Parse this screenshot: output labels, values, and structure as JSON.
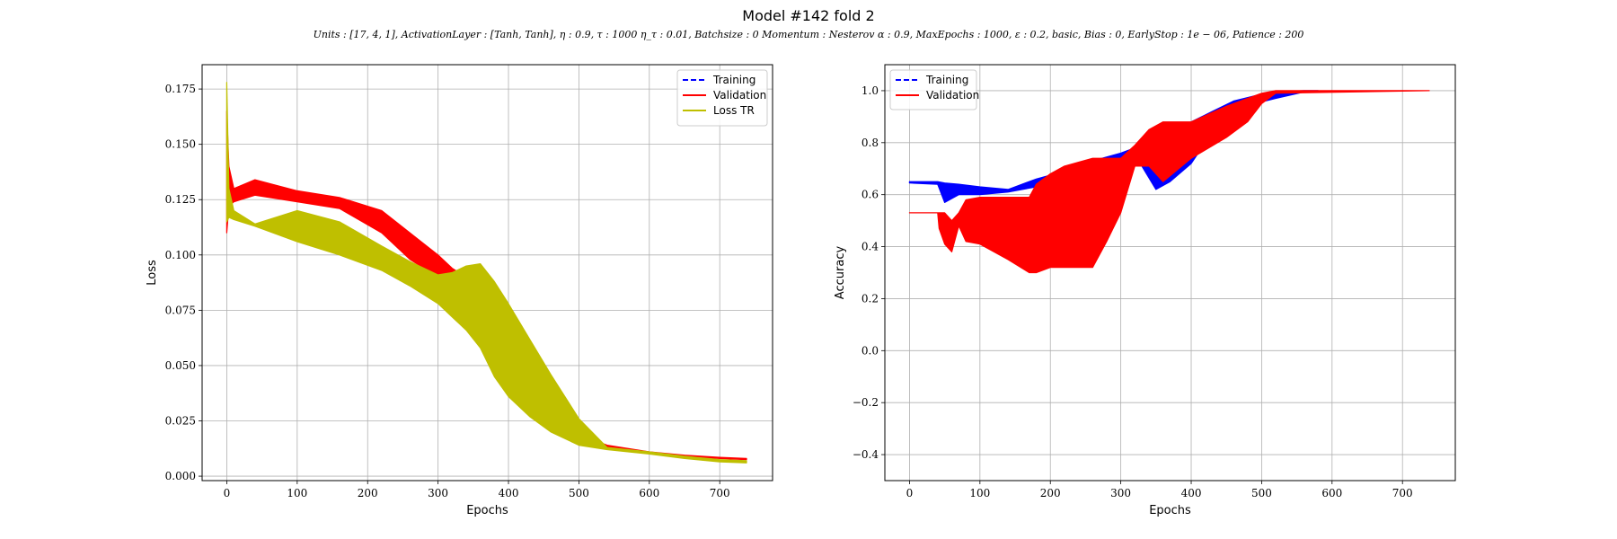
{
  "figure": {
    "title": "Model #142 fold 2",
    "subtitle": "Units : [17, 4, 1], ActivationLayer : [Tanh, Tanh], η : 0.9, τ : 1000 η_τ : 0.01, Batchsize : 0 Momentum : Nesterov α : 0.9, MaxEpochs : 1000, ε : 0.2, basic, Bias : 0, EarlyStop : 1e − 06, Patience : 200"
  },
  "chart_data": [
    {
      "type": "line",
      "name": "loss-plot",
      "title": "",
      "xlabel": "Epochs",
      "ylabel": "Loss",
      "xlim": [
        -35,
        775
      ],
      "ylim": [
        -0.002,
        0.186
      ],
      "xticks": [
        0,
        100,
        200,
        300,
        400,
        500,
        600,
        700
      ],
      "yticks": [
        0.0,
        0.025,
        0.05,
        0.075,
        0.1,
        0.125,
        0.15,
        0.175
      ],
      "ytick_labels": [
        "0.000",
        "0.025",
        "0.050",
        "0.075",
        "0.100",
        "0.125",
        "0.150",
        "0.175"
      ],
      "grid": true,
      "legend_position": "top-right",
      "legend": [
        {
          "label": "Training",
          "color": "#0000ff",
          "style": "dashed"
        },
        {
          "label": "Validation",
          "color": "#ff0000",
          "style": "solid"
        },
        {
          "label": "Loss TR",
          "color": "#bfbf00",
          "style": "solid"
        }
      ],
      "series": [
        {
          "name": "Validation",
          "color": "#ff0000",
          "band": true,
          "x": [
            0,
            3,
            10,
            40,
            100,
            160,
            220,
            260,
            300,
            320,
            340,
            360,
            380,
            400,
            430,
            460,
            500,
            540,
            600,
            650,
            700,
            738
          ],
          "y_low": [
            0.11,
            0.122,
            0.124,
            0.127,
            0.124,
            0.121,
            0.11,
            0.098,
            0.09,
            0.086,
            0.083,
            0.078,
            0.06,
            0.045,
            0.032,
            0.024,
            0.016,
            0.013,
            0.011,
            0.009,
            0.008,
            0.0075
          ],
          "y_high": [
            0.165,
            0.14,
            0.13,
            0.134,
            0.129,
            0.126,
            0.12,
            0.11,
            0.1,
            0.094,
            0.09,
            0.085,
            0.07,
            0.053,
            0.038,
            0.028,
            0.019,
            0.014,
            0.011,
            0.0095,
            0.0085,
            0.008
          ]
        },
        {
          "name": "Loss TR",
          "color": "#bfbf00",
          "band": true,
          "x": [
            0,
            3,
            10,
            40,
            100,
            160,
            220,
            260,
            300,
            320,
            340,
            360,
            380,
            400,
            430,
            460,
            500,
            540,
            600,
            650,
            700,
            738
          ],
          "y_low": [
            0.115,
            0.117,
            0.116,
            0.113,
            0.106,
            0.1,
            0.093,
            0.086,
            0.078,
            0.072,
            0.066,
            0.058,
            0.045,
            0.036,
            0.027,
            0.02,
            0.014,
            0.012,
            0.01,
            0.008,
            0.0065,
            0.006
          ],
          "y_high": [
            0.178,
            0.13,
            0.12,
            0.114,
            0.12,
            0.115,
            0.104,
            0.097,
            0.091,
            0.092,
            0.095,
            0.096,
            0.088,
            0.078,
            0.062,
            0.046,
            0.026,
            0.013,
            0.011,
            0.009,
            0.0075,
            0.007
          ]
        }
      ]
    },
    {
      "type": "line",
      "name": "accuracy-plot",
      "title": "",
      "xlabel": "Epochs",
      "ylabel": "Accuracy",
      "xlim": [
        -35,
        775
      ],
      "ylim": [
        -0.5,
        1.1
      ],
      "xticks": [
        0,
        100,
        200,
        300,
        400,
        500,
        600,
        700
      ],
      "yticks": [
        -0.4,
        -0.2,
        0.0,
        0.2,
        0.4,
        0.6,
        0.8,
        1.0
      ],
      "ytick_labels": [
        "−0.4",
        "−0.2",
        "0.0",
        "0.2",
        "0.4",
        "0.6",
        "0.8",
        "1.0"
      ],
      "grid": true,
      "legend_position": "top-left",
      "legend": [
        {
          "label": "Training",
          "color": "#0000ff",
          "style": "dashed"
        },
        {
          "label": "Validation",
          "color": "#ff0000",
          "style": "solid"
        }
      ],
      "series": [
        {
          "name": "Training",
          "color": "#0000ff",
          "band": true,
          "x": [
            0,
            40,
            50,
            70,
            100,
            140,
            180,
            220,
            260,
            300,
            330,
            350,
            370,
            400,
            430,
            460,
            490,
            520,
            560,
            580
          ],
          "y_low": [
            0.645,
            0.64,
            0.57,
            0.6,
            0.6,
            0.61,
            0.63,
            0.65,
            0.7,
            0.73,
            0.71,
            0.62,
            0.65,
            0.72,
            0.84,
            0.9,
            0.95,
            0.97,
            0.995,
            1.0
          ],
          "y_high": [
            0.65,
            0.65,
            0.645,
            0.64,
            0.63,
            0.62,
            0.66,
            0.69,
            0.73,
            0.76,
            0.79,
            0.85,
            0.86,
            0.88,
            0.92,
            0.96,
            0.98,
            0.995,
            1.0,
            1.0
          ]
        },
        {
          "name": "Validation",
          "color": "#ff0000",
          "band": true,
          "x": [
            0,
            40,
            42,
            50,
            60,
            70,
            80,
            100,
            140,
            170,
            180,
            200,
            220,
            260,
            280,
            300,
            320,
            340,
            360,
            400,
            450,
            480,
            500,
            520,
            738
          ],
          "y_low": [
            0.53,
            0.53,
            0.47,
            0.41,
            0.38,
            0.48,
            0.42,
            0.41,
            0.35,
            0.3,
            0.3,
            0.32,
            0.32,
            0.32,
            0.42,
            0.53,
            0.71,
            0.71,
            0.65,
            0.74,
            0.82,
            0.88,
            0.95,
            0.99,
            1.0
          ],
          "y_high": [
            0.53,
            0.53,
            0.53,
            0.53,
            0.5,
            0.53,
            0.58,
            0.59,
            0.59,
            0.59,
            0.64,
            0.68,
            0.71,
            0.74,
            0.74,
            0.74,
            0.79,
            0.85,
            0.88,
            0.88,
            0.94,
            0.97,
            0.99,
            1.0,
            1.0
          ]
        }
      ]
    }
  ]
}
